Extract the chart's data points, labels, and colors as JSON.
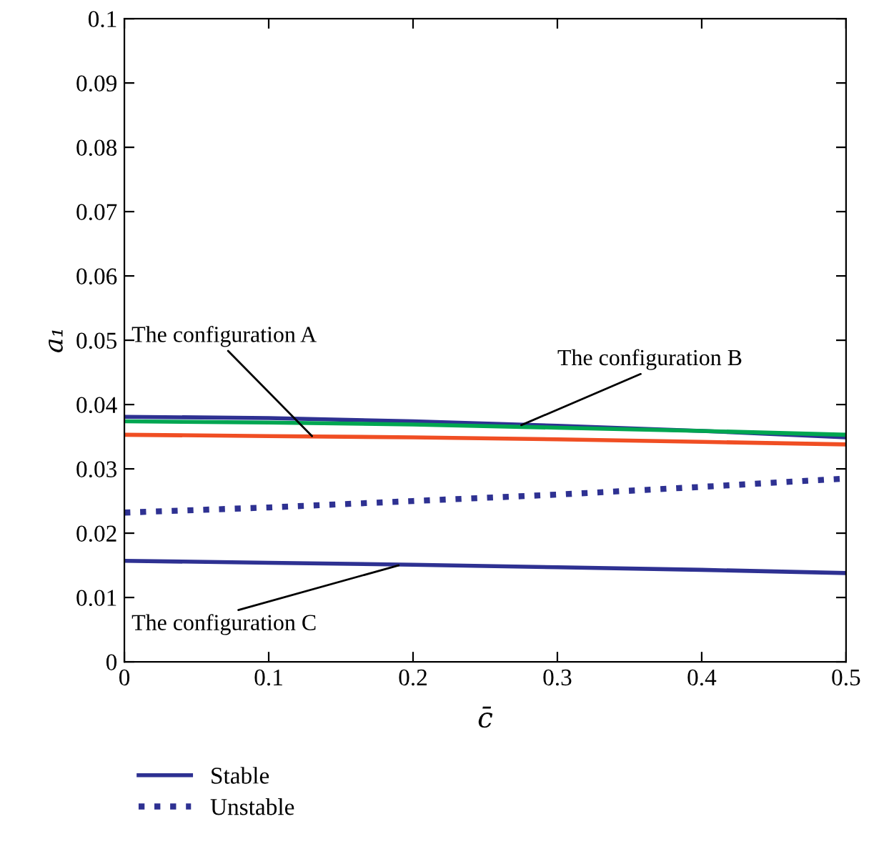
{
  "chart_data": {
    "type": "line",
    "xlabel": "c̄",
    "ylabel": "a₁",
    "x": [
      0,
      0.1,
      0.2,
      0.3,
      0.4,
      0.5
    ],
    "series": [
      {
        "color": "#2e3192",
        "line_style": "solid",
        "values": [
          0.0381,
          0.0379,
          0.0374,
          0.0367,
          0.0359,
          0.0349
        ]
      },
      {
        "color": "#00a651",
        "line_style": "solid",
        "values": [
          0.0374,
          0.0372,
          0.0369,
          0.0364,
          0.0359,
          0.0353
        ]
      },
      {
        "color": "#f04e23",
        "line_style": "solid",
        "values": [
          0.0353,
          0.0351,
          0.0349,
          0.0346,
          0.0342,
          0.0338
        ]
      },
      {
        "name": "Unstable",
        "color": "#2e3192",
        "line_style": "dotted",
        "values": [
          0.0232,
          0.024,
          0.025,
          0.026,
          0.0272,
          0.0285
        ]
      },
      {
        "name": "Stable",
        "color": "#2e3192",
        "line_style": "solid",
        "values": [
          0.0157,
          0.0154,
          0.0151,
          0.0147,
          0.0143,
          0.0138
        ]
      }
    ],
    "annotations": [
      {
        "text": "The configuration A",
        "x": 0.13,
        "y": 0.0351
      },
      {
        "text": "The configuration B",
        "x": 0.275,
        "y": 0.0368
      },
      {
        "text": "The configuration C",
        "x": 0.19,
        "y": 0.015
      }
    ],
    "xlim": [
      0,
      0.5
    ],
    "xticks": [
      0,
      0.1,
      0.2,
      0.3,
      0.4,
      0.5
    ],
    "ylim": [
      0,
      0.1
    ],
    "yticks": [
      0,
      0.01,
      0.02,
      0.03,
      0.04,
      0.05,
      0.06,
      0.07,
      0.08,
      0.09,
      0.1
    ],
    "grid": false,
    "legend": "bottom left",
    "marker": "none"
  }
}
